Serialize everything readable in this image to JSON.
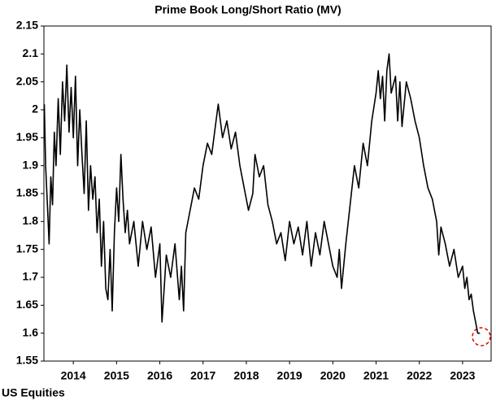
{
  "chart_data": {
    "type": "line",
    "title": "Prime Book Long/Short Ratio (MV)",
    "footnote": "US Equities",
    "series": [
      {
        "name": "US Equities",
        "color": "#000000",
        "x": [
          2013.33,
          2013.36,
          2013.4,
          2013.44,
          2013.48,
          2013.52,
          2013.56,
          2013.6,
          2013.65,
          2013.7,
          2013.75,
          2013.8,
          2013.85,
          2013.9,
          2013.95,
          2014.0,
          2014.05,
          2014.1,
          2014.15,
          2014.2,
          2014.25,
          2014.3,
          2014.35,
          2014.4,
          2014.45,
          2014.5,
          2014.55,
          2014.6,
          2014.65,
          2014.7,
          2014.75,
          2014.8,
          2014.85,
          2014.9,
          2014.95,
          2015.0,
          2015.05,
          2015.1,
          2015.15,
          2015.2,
          2015.25,
          2015.3,
          2015.4,
          2015.5,
          2015.6,
          2015.7,
          2015.8,
          2015.9,
          2016.0,
          2016.05,
          2016.1,
          2016.15,
          2016.25,
          2016.35,
          2016.45,
          2016.5,
          2016.55,
          2016.6,
          2016.7,
          2016.8,
          2016.9,
          2017.0,
          2017.1,
          2017.2,
          2017.3,
          2017.35,
          2017.45,
          2017.55,
          2017.65,
          2017.75,
          2017.85,
          2017.95,
          2018.05,
          2018.15,
          2018.2,
          2018.3,
          2018.4,
          2018.5,
          2018.6,
          2018.7,
          2018.8,
          2018.9,
          2019.0,
          2019.1,
          2019.2,
          2019.3,
          2019.4,
          2019.5,
          2019.6,
          2019.7,
          2019.8,
          2019.9,
          2020.0,
          2020.1,
          2020.15,
          2020.2,
          2020.3,
          2020.4,
          2020.5,
          2020.6,
          2020.7,
          2020.8,
          2020.9,
          2021.0,
          2021.05,
          2021.1,
          2021.15,
          2021.2,
          2021.25,
          2021.3,
          2021.35,
          2021.45,
          2021.5,
          2021.55,
          2021.6,
          2021.7,
          2021.8,
          2021.9,
          2022.0,
          2022.1,
          2022.2,
          2022.3,
          2022.4,
          2022.45,
          2022.5,
          2022.6,
          2022.7,
          2022.8,
          2022.9,
          2023.0,
          2023.05,
          2023.1,
          2023.15,
          2023.2,
          2023.25,
          2023.3,
          2023.35,
          2023.4
        ],
        "values": [
          2.01,
          1.9,
          1.83,
          1.76,
          1.88,
          1.83,
          1.96,
          1.9,
          2.02,
          1.92,
          2.05,
          1.98,
          2.08,
          1.96,
          2.04,
          1.95,
          2.06,
          1.9,
          2.0,
          1.92,
          1.85,
          1.98,
          1.82,
          1.9,
          1.84,
          1.88,
          1.78,
          1.84,
          1.72,
          1.8,
          1.68,
          1.66,
          1.75,
          1.64,
          1.78,
          1.86,
          1.8,
          1.92,
          1.84,
          1.78,
          1.82,
          1.76,
          1.8,
          1.72,
          1.8,
          1.75,
          1.79,
          1.7,
          1.76,
          1.62,
          1.68,
          1.74,
          1.7,
          1.76,
          1.66,
          1.72,
          1.64,
          1.78,
          1.82,
          1.86,
          1.84,
          1.9,
          1.94,
          1.92,
          1.98,
          2.01,
          1.95,
          1.98,
          1.93,
          1.96,
          1.9,
          1.86,
          1.82,
          1.85,
          1.92,
          1.88,
          1.9,
          1.83,
          1.8,
          1.76,
          1.78,
          1.73,
          1.8,
          1.76,
          1.79,
          1.74,
          1.8,
          1.72,
          1.78,
          1.74,
          1.8,
          1.76,
          1.72,
          1.7,
          1.75,
          1.68,
          1.76,
          1.83,
          1.9,
          1.86,
          1.94,
          1.9,
          1.98,
          2.03,
          2.07,
          2.02,
          2.06,
          1.98,
          2.07,
          2.1,
          2.03,
          2.06,
          1.98,
          2.05,
          1.97,
          2.05,
          2.02,
          1.98,
          1.95,
          1.9,
          1.86,
          1.84,
          1.8,
          1.74,
          1.79,
          1.76,
          1.72,
          1.75,
          1.7,
          1.72,
          1.68,
          1.7,
          1.66,
          1.67,
          1.64,
          1.62,
          1.6,
          1.6
        ]
      }
    ],
    "xlim": [
      2013.32,
      2023.66
    ],
    "ylim": [
      1.55,
      2.15
    ],
    "xticks": [
      {
        "value": 2014,
        "label": "2014"
      },
      {
        "value": 2015,
        "label": "2015"
      },
      {
        "value": 2016,
        "label": "2016"
      },
      {
        "value": 2017,
        "label": "2017"
      },
      {
        "value": 2018,
        "label": "2018"
      },
      {
        "value": 2019,
        "label": "2019"
      },
      {
        "value": 2020,
        "label": "2020"
      },
      {
        "value": 2021,
        "label": "2021"
      },
      {
        "value": 2022,
        "label": "2022"
      },
      {
        "value": 2023,
        "label": "2023"
      }
    ],
    "yticks": [
      1.55,
      1.6,
      1.65,
      1.7,
      1.75,
      1.8,
      1.85,
      1.9,
      1.95,
      2,
      2.05,
      2.1,
      2.15
    ]
  }
}
